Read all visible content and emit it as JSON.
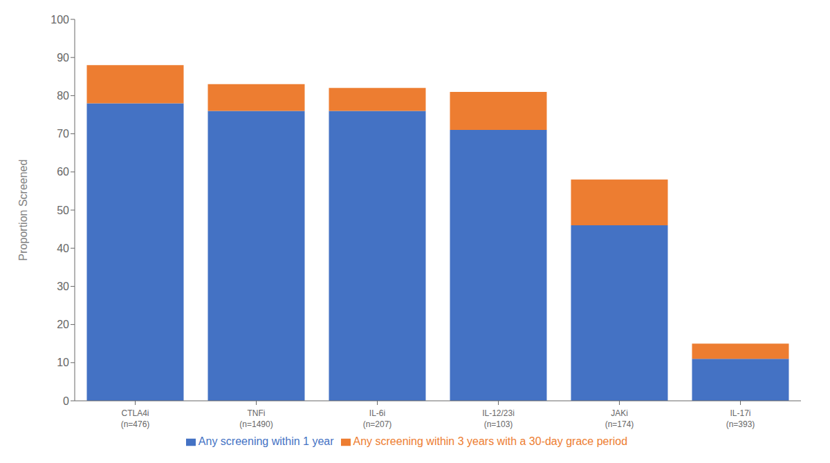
{
  "chart_data": {
    "type": "bar",
    "stacked": true,
    "categories": [
      "CTLA4i\n(n=476)",
      "TNFi\n(n=1490)",
      "IL-6i\n(n=207)",
      "IL-12/23i\n(n=103)",
      "JAKi\n(n=174)",
      "IL-17i\n(n=393)"
    ],
    "series": [
      {
        "name": "Any screening within 1 year",
        "color": "#4472C4",
        "values": [
          78,
          76,
          76,
          71,
          46,
          11
        ]
      },
      {
        "name": "Any screening within 3 years with a 30-day grace period",
        "color": "#ED7D31",
        "values": [
          10,
          7,
          6,
          10,
          12,
          4
        ]
      }
    ],
    "ylabel": "Proportion Screened",
    "ylim": [
      0,
      100
    ],
    "yticks": [
      0,
      10,
      20,
      30,
      40,
      50,
      60,
      70,
      80,
      90,
      100
    ],
    "grid": false,
    "legend": "bottom"
  }
}
